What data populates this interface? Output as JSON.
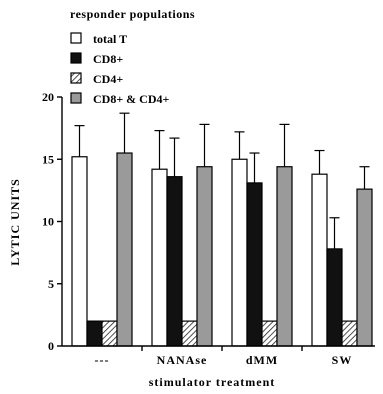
{
  "chart_data": {
    "type": "bar",
    "title": "",
    "legend_title": "responder populations",
    "legend_position": "top-left",
    "xlabel": "stimulator treatment",
    "ylabel": "LYTIC UNITS",
    "ylim": [
      0,
      20
    ],
    "yticks": [
      "0",
      "5",
      "10",
      "15",
      "20"
    ],
    "grid": false,
    "categories": [
      "---",
      "NANAse",
      "dMM",
      "SW"
    ],
    "series": [
      {
        "name": "total T",
        "fill": "white",
        "values": [
          15.2,
          14.2,
          15.0,
          13.8
        ],
        "errors": [
          2.5,
          3.1,
          2.2,
          1.9
        ]
      },
      {
        "name": "CD8+",
        "fill": "black",
        "values": [
          2.0,
          13.6,
          13.1,
          7.8
        ],
        "errors": [
          0,
          3.1,
          2.4,
          2.5
        ]
      },
      {
        "name": "CD4+",
        "fill": "hatch",
        "values": [
          2.0,
          2.0,
          2.0,
          2.0
        ],
        "errors": [
          0,
          0,
          0,
          0
        ]
      },
      {
        "name": "CD8+ & CD4+",
        "fill": "gray",
        "values": [
          15.5,
          14.4,
          14.4,
          12.6
        ],
        "errors": [
          3.2,
          3.4,
          3.4,
          1.8
        ]
      }
    ],
    "colors": {
      "black": "#111111",
      "gray": "#9a9a9a",
      "white": "#ffffff",
      "hatch_line": "#222222"
    }
  }
}
